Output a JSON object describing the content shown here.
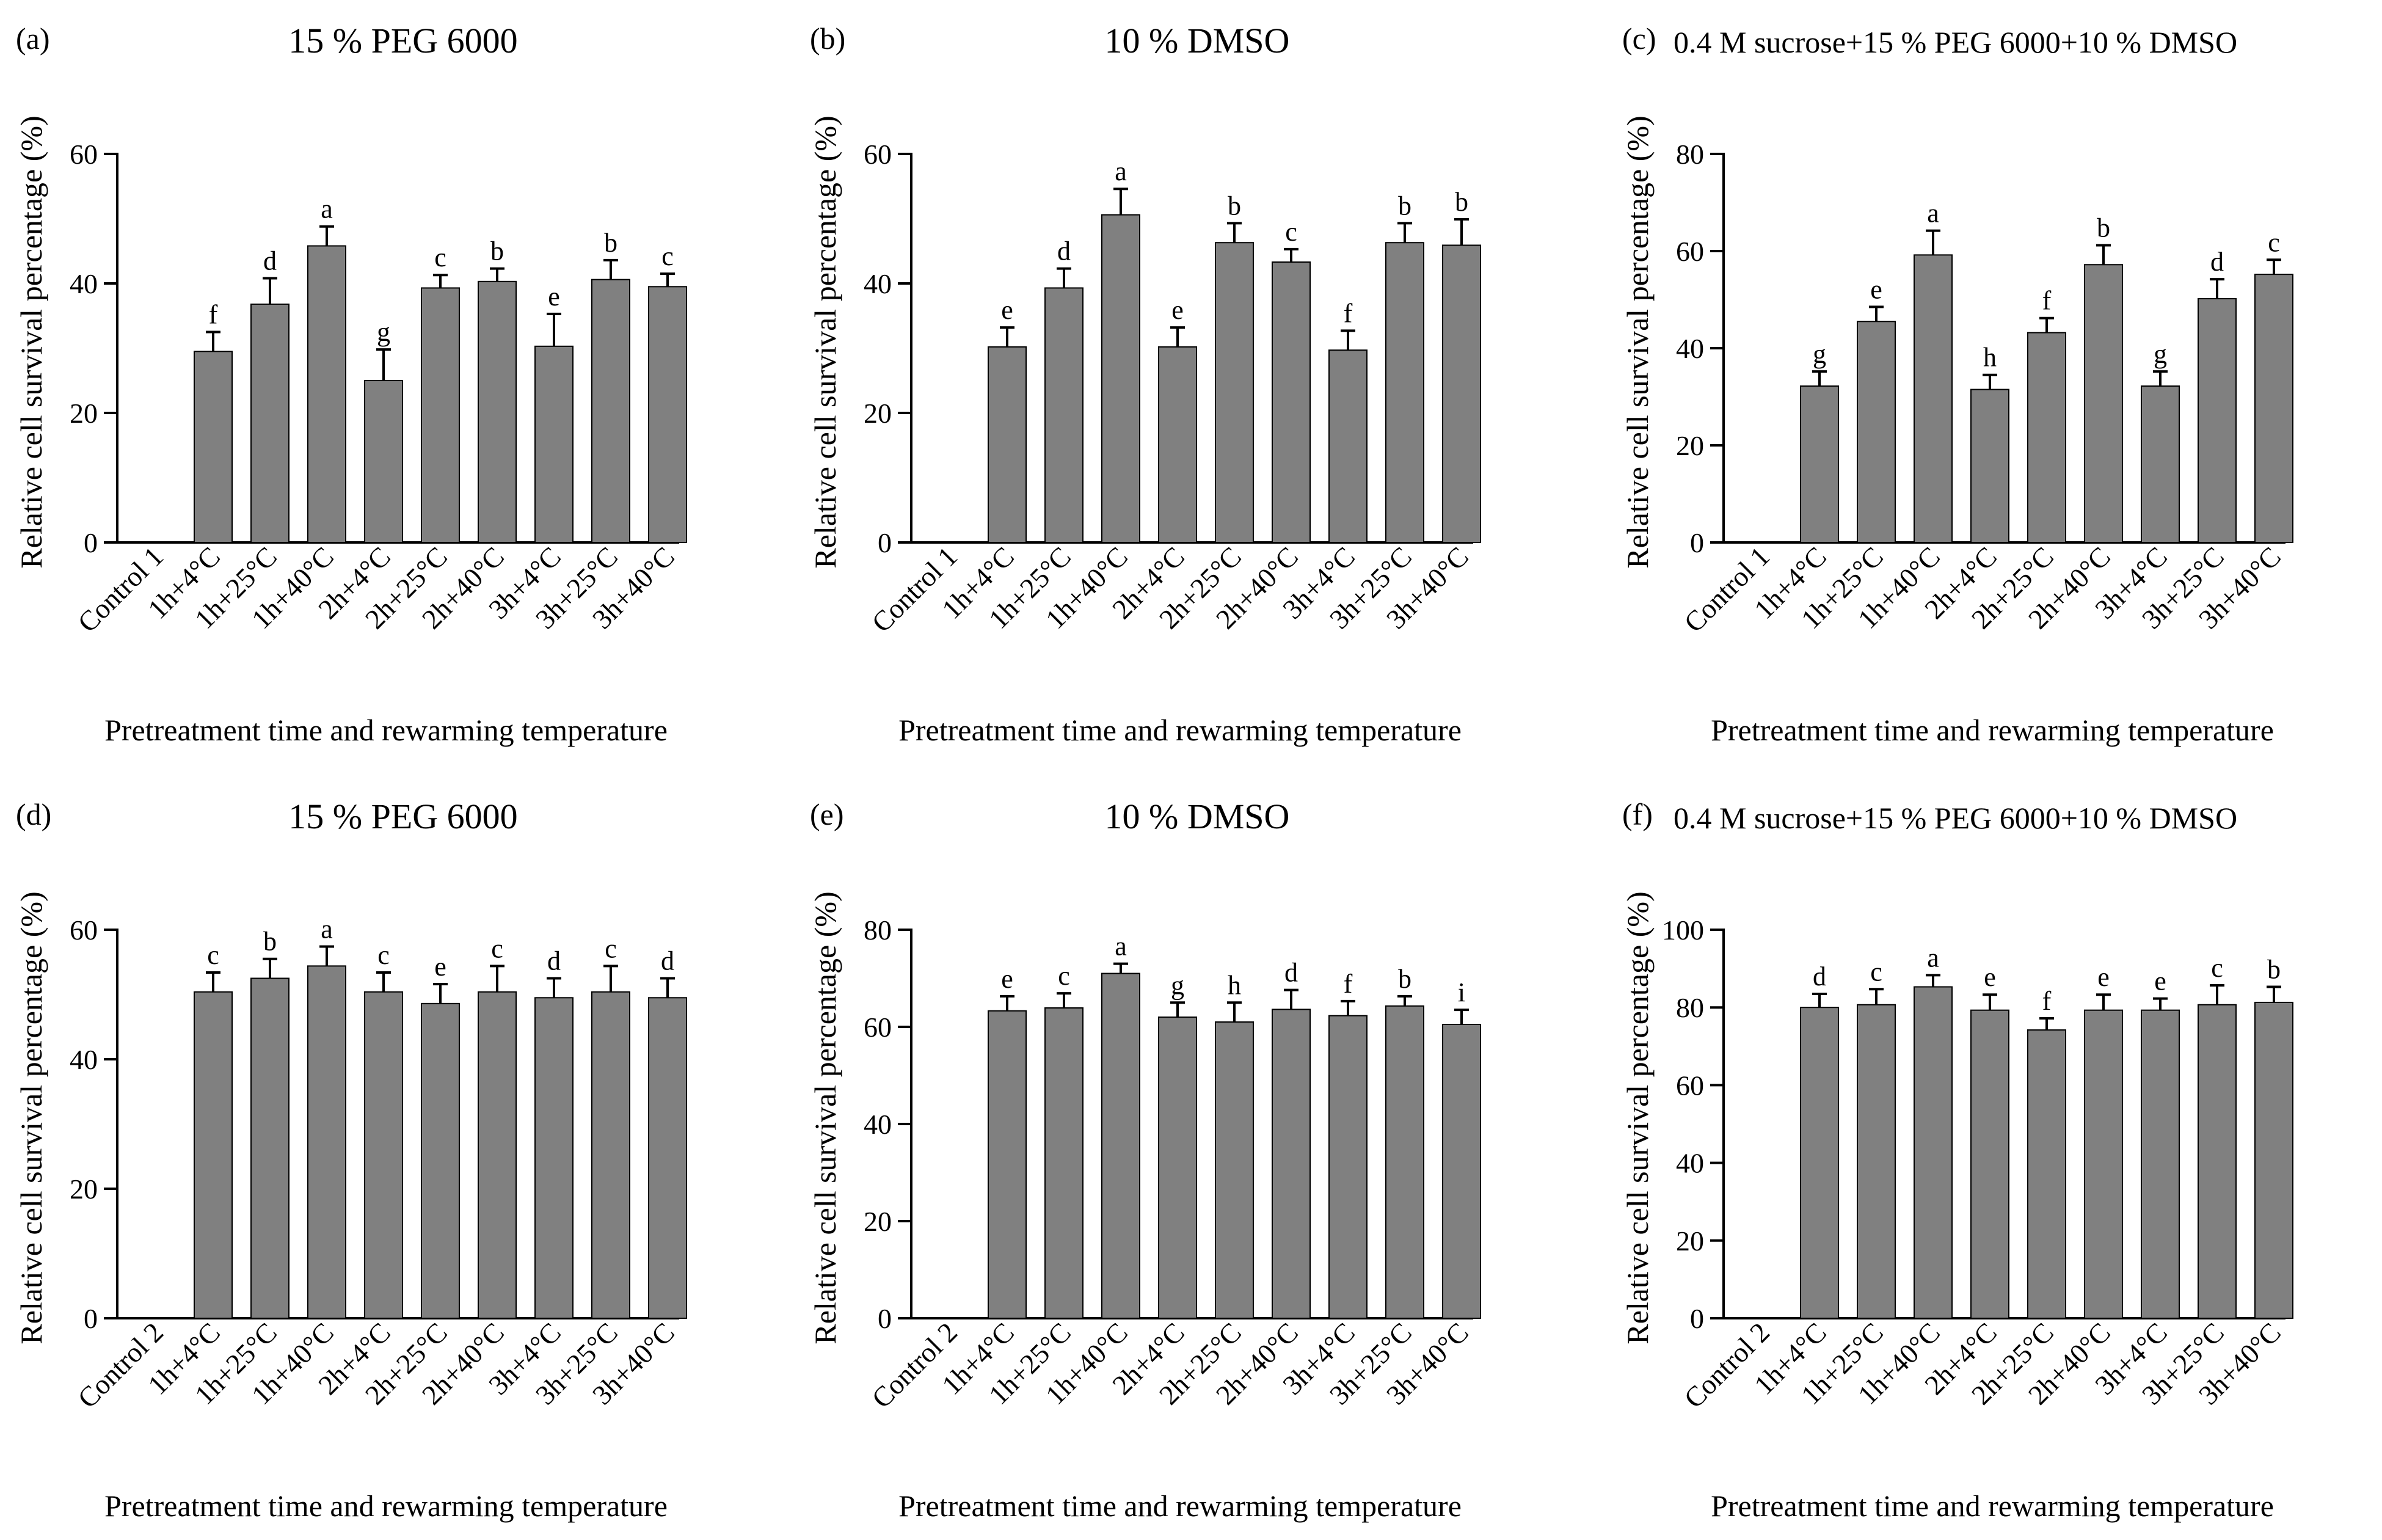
{
  "chart_data": [
    {
      "type": "bar",
      "panel_label": "(a)",
      "title": "15 % PEG 6000",
      "xlabel": "Pretreatment time and rewarming temperature",
      "ylabel": "Relative cell survival percentage (%)",
      "ylim": [
        0,
        60
      ],
      "yticks": [
        0,
        20,
        40,
        60
      ],
      "categories": [
        "Control 1",
        "1h+4°C",
        "1h+25°C",
        "1h+40°C",
        "2h+4°C",
        "2h+25°C",
        "2h+40°C",
        "3h+4°C",
        "3h+25°C",
        "3h+40°C"
      ],
      "values": [
        null,
        29.5,
        36.8,
        45.8,
        25.0,
        39.3,
        40.3,
        30.3,
        40.6,
        39.5
      ],
      "errors": [
        null,
        3.0,
        4.0,
        3.0,
        4.8,
        2.0,
        2.0,
        5.0,
        3.0,
        2.0
      ],
      "letters": [
        "",
        "f",
        "d",
        "a",
        "g",
        "c",
        "b",
        "e",
        "b",
        "c"
      ]
    },
    {
      "type": "bar",
      "panel_label": "(b)",
      "title": "10 % DMSO",
      "xlabel": "Pretreatment time and rewarming temperature",
      "ylabel": "Relative cell survival percentage (%)",
      "ylim": [
        0,
        60
      ],
      "yticks": [
        0,
        20,
        40,
        60
      ],
      "categories": [
        "Control 1",
        "1h+4°C",
        "1h+25°C",
        "1h+40°C",
        "2h+4°C",
        "2h+25°C",
        "2h+40°C",
        "3h+4°C",
        "3h+25°C",
        "3h+40°C"
      ],
      "values": [
        null,
        30.2,
        39.3,
        50.6,
        30.2,
        46.3,
        43.3,
        29.7,
        46.3,
        45.9
      ],
      "errors": [
        null,
        3.0,
        3.0,
        4.0,
        3.0,
        3.0,
        2.0,
        3.0,
        3.0,
        4.0
      ],
      "letters": [
        "",
        "e",
        "d",
        "a",
        "e",
        "b",
        "c",
        "f",
        "b",
        "b"
      ]
    },
    {
      "type": "bar",
      "panel_label": "(c)",
      "title": "0.4 M sucrose+15 % PEG 6000+10 % DMSO",
      "xlabel": "Pretreatment time and rewarming temperature",
      "ylabel": "Relative cell survival percentage (%)",
      "ylim": [
        0,
        80
      ],
      "yticks": [
        0,
        20,
        40,
        60,
        80
      ],
      "categories": [
        "Control 1",
        "1h+4°C",
        "1h+25°C",
        "1h+40°C",
        "2h+4°C",
        "2h+25°C",
        "2h+40°C",
        "3h+4°C",
        "3h+25°C",
        "3h+40°C"
      ],
      "values": [
        null,
        32.2,
        45.5,
        59.2,
        31.5,
        43.2,
        57.2,
        32.2,
        50.2,
        55.2
      ],
      "errors": [
        null,
        3.0,
        3.0,
        5.0,
        3.0,
        3.0,
        4.0,
        3.0,
        4.0,
        3.0
      ],
      "letters": [
        "",
        "g",
        "e",
        "a",
        "h",
        "f",
        "b",
        "g",
        "d",
        "c"
      ]
    },
    {
      "type": "bar",
      "panel_label": "(d)",
      "title": "15 % PEG 6000",
      "xlabel": "Pretreatment time and rewarming temperature",
      "ylabel": "Relative cell survival percentage (%)",
      "ylim": [
        0,
        60
      ],
      "yticks": [
        0,
        20,
        40,
        60
      ],
      "categories": [
        "Control 2",
        "1h+4°C",
        "1h+25°C",
        "1h+40°C",
        "2h+4°C",
        "2h+25°C",
        "2h+40°C",
        "3h+4°C",
        "3h+25°C",
        "3h+40°C"
      ],
      "values": [
        null,
        50.4,
        52.5,
        54.4,
        50.4,
        48.6,
        50.4,
        49.5,
        50.4,
        49.5
      ],
      "errors": [
        null,
        3.0,
        3.0,
        3.0,
        3.0,
        3.0,
        4.0,
        3.0,
        4.0,
        3.0
      ],
      "letters": [
        "",
        "c",
        "b",
        "a",
        "c",
        "e",
        "c",
        "d",
        "c",
        "d"
      ]
    },
    {
      "type": "bar",
      "panel_label": "(e)",
      "title": "10 % DMSO",
      "xlabel": "Pretreatment time and rewarming temperature",
      "ylabel": "Relative cell survival percentage (%)",
      "ylim": [
        0,
        80
      ],
      "yticks": [
        0,
        20,
        40,
        60,
        80
      ],
      "categories": [
        "Control 2",
        "1h+4°C",
        "1h+25°C",
        "1h+40°C",
        "2h+4°C",
        "2h+25°C",
        "2h+40°C",
        "3h+4°C",
        "3h+25°C",
        "3h+40°C"
      ],
      "values": [
        null,
        63.3,
        63.9,
        71.0,
        62.0,
        61.0,
        63.6,
        62.3,
        64.3,
        60.5
      ],
      "errors": [
        null,
        3.0,
        3.0,
        2.0,
        3.0,
        4.0,
        4.0,
        3.0,
        2.0,
        3.0
      ],
      "letters": [
        "",
        "e",
        "c",
        "a",
        "g",
        "h",
        "d",
        "f",
        "b",
        "i"
      ]
    },
    {
      "type": "bar",
      "panel_label": "(f)",
      "title": "0.4 M sucrose+15 % PEG 6000+10 % DMSO",
      "xlabel": "Pretreatment time and rewarming temperature",
      "ylabel": "Relative cell survival percentage (%)",
      "ylim": [
        0,
        100
      ],
      "yticks": [
        0,
        20,
        40,
        60,
        80,
        100
      ],
      "categories": [
        "Control 2",
        "1h+4°C",
        "1h+25°C",
        "1h+40°C",
        "2h+4°C",
        "2h+25°C",
        "2h+40°C",
        "3h+4°C",
        "3h+25°C",
        "3h+40°C"
      ],
      "values": [
        null,
        80.0,
        80.7,
        85.3,
        79.3,
        74.2,
        79.3,
        79.3,
        80.7,
        81.3
      ],
      "errors": [
        null,
        3.5,
        4.0,
        3.0,
        4.0,
        3.0,
        4.0,
        3.0,
        5.0,
        4.0
      ],
      "letters": [
        "",
        "d",
        "c",
        "a",
        "e",
        "f",
        "e",
        "e",
        "c",
        "b"
      ]
    }
  ]
}
